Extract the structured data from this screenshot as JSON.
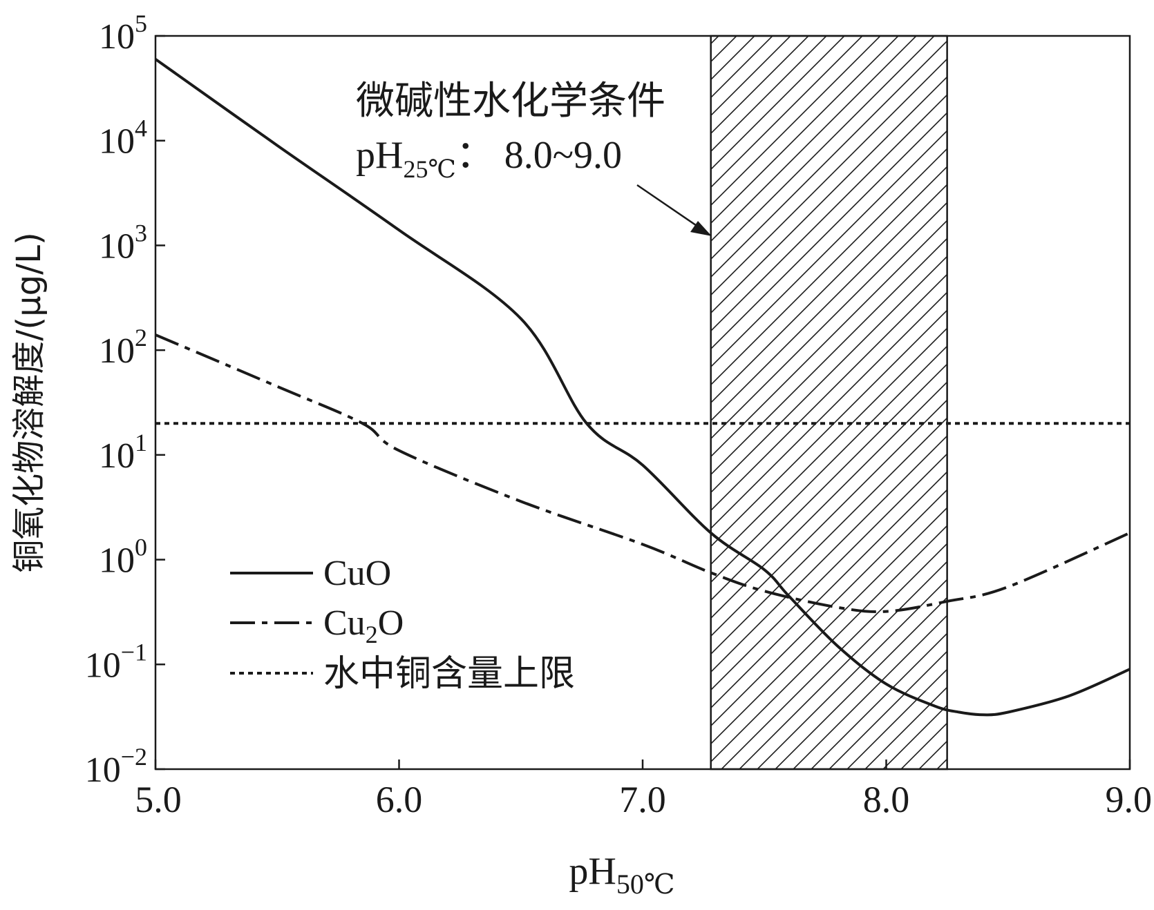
{
  "chart_data": {
    "type": "line",
    "title": "",
    "xlabel": {
      "base": "pH",
      "subscript": "50℃"
    },
    "ylabel": "铜氧化物溶解度/(μg/L)",
    "xlim": [
      5.0,
      9.0
    ],
    "ylim": [
      0.01,
      100000
    ],
    "yscale": "log",
    "x_ticks": [
      {
        "value": 5.0,
        "label": "5.0"
      },
      {
        "value": 6.0,
        "label": "6.0"
      },
      {
        "value": 7.0,
        "label": "7.0"
      },
      {
        "value": 8.0,
        "label": "8.0"
      },
      {
        "value": 9.0,
        "label": "9.0"
      }
    ],
    "y_ticks": [
      {
        "exp": -2,
        "base": "10",
        "sup": "−2"
      },
      {
        "exp": -1,
        "base": "10",
        "sup": "−1"
      },
      {
        "exp": 0,
        "base": "10",
        "sup": "0"
      },
      {
        "exp": 1,
        "base": "10",
        "sup": "1"
      },
      {
        "exp": 2,
        "base": "10",
        "sup": "2"
      },
      {
        "exp": 3,
        "base": "10",
        "sup": "3"
      },
      {
        "exp": 4,
        "base": "10",
        "sup": "4"
      },
      {
        "exp": 5,
        "base": "10",
        "sup": "5"
      }
    ],
    "series": [
      {
        "name": "CuO",
        "legend_parts": [
          "CuO"
        ],
        "style": "solid",
        "x": [
          5.0,
          5.5,
          6.0,
          6.5,
          6.77,
          7.0,
          7.28,
          7.5,
          7.6,
          7.8,
          8.0,
          8.2,
          8.3,
          8.4,
          8.5,
          8.75,
          9.0
        ],
        "y": [
          60000,
          9000,
          1400,
          200,
          20,
          8,
          1.8,
          0.8,
          0.45,
          0.15,
          0.065,
          0.04,
          0.035,
          0.033,
          0.035,
          0.05,
          0.09
        ]
      },
      {
        "name": "Cu2O",
        "legend_parts": [
          "Cu",
          "2",
          "O"
        ],
        "style": "dashdot",
        "x": [
          5.0,
          5.5,
          5.85,
          6.0,
          6.5,
          7.0,
          7.28,
          7.5,
          7.8,
          8.0,
          8.25,
          8.5,
          9.0
        ],
        "y": [
          140,
          45,
          20,
          11,
          3.6,
          1.4,
          0.75,
          0.5,
          0.35,
          0.32,
          0.4,
          0.55,
          1.8
        ]
      },
      {
        "name": "水中铜含量上限",
        "legend_parts": [
          "水中铜含量上限"
        ],
        "style": "dotted",
        "x": [
          5.0,
          9.0
        ],
        "y": [
          20,
          20
        ]
      }
    ],
    "shaded_region": {
      "x_start": 7.28,
      "x_end": 8.25,
      "pattern": "diagonal-hatch"
    },
    "annotation": {
      "line1": "微碱性水化学条件",
      "line2_base": "pH",
      "line2_sub": "25℃",
      "line2_rest": "：  8.0~9.0"
    },
    "legend_position": "lower-left",
    "grid": false
  }
}
